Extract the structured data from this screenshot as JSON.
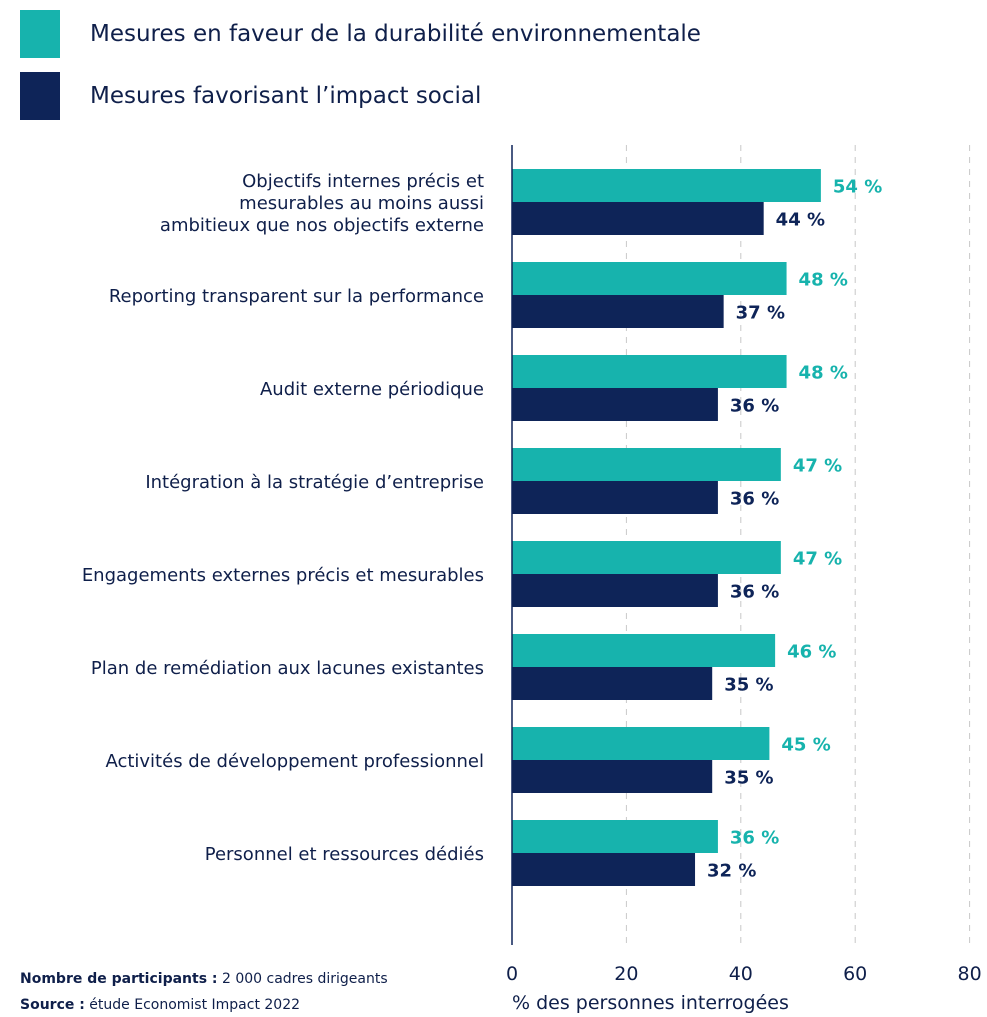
{
  "colors": {
    "env": "#17b3ad",
    "social": "#0e2458",
    "text": "#0f1f4a",
    "grid": "#c8c8c8"
  },
  "legend": [
    {
      "label": "Mesures en faveur de la durabilité environnementale",
      "color": "#17b3ad"
    },
    {
      "label": "Mesures favorisant l’impact social",
      "color": "#0e2458"
    }
  ],
  "chart_data": {
    "type": "bar",
    "orientation": "horizontal",
    "categories": [
      [
        "Objectifs internes précis et",
        "mesurables au moins aussi",
        "ambitieux que nos objectifs externe"
      ],
      [
        "Reporting transparent sur la performance"
      ],
      [
        "Audit externe périodique"
      ],
      [
        "Intégration à la stratégie d’entreprise"
      ],
      [
        "Engagements externes précis et mesurables"
      ],
      [
        "Plan de remédiation aux lacunes existantes"
      ],
      [
        "Activités de développement professionnel"
      ],
      [
        "Personnel et ressources dédiés"
      ]
    ],
    "series": [
      {
        "name": "Mesures en faveur de la durabilité environnementale",
        "values": [
          54,
          48,
          48,
          47,
          47,
          46,
          45,
          36
        ],
        "labels": [
          "54 %",
          "48 %",
          "48 %",
          "47 %",
          "47 %",
          "46 %",
          "45 %",
          "36 %"
        ]
      },
      {
        "name": "Mesures favorisant l’impact social",
        "values": [
          44,
          37,
          36,
          36,
          36,
          35,
          35,
          32
        ],
        "labels": [
          "44 %",
          "37 %",
          "36 %",
          "36 %",
          "36 %",
          "35 %",
          "35 %",
          "32 %"
        ]
      }
    ],
    "xlim": [
      0,
      80
    ],
    "xticks": [
      0,
      20,
      40,
      60,
      80
    ],
    "xlabel": "% des personnes interrogées",
    "grid": "vertical dashed"
  },
  "footer": {
    "participants_label": "Nombre de participants :",
    "participants_value": "2 000 cadres dirigeants",
    "source_label": "Source :",
    "source_value": "étude Economist Impact 2022"
  }
}
